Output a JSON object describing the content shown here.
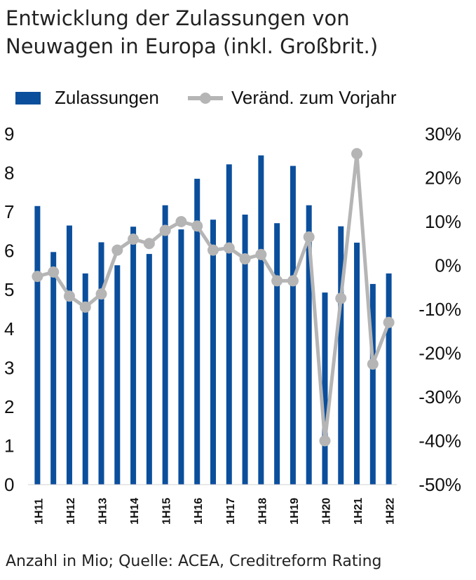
{
  "title_lines": [
    "Entwicklung der Zulassungen von",
    "Neuwagen in Europa (inkl. Großbrit.)"
  ],
  "footer": "Anzahl in Mio; Quelle: ACEA, Creditreform Rating",
  "chart_data": {
    "type": "bar",
    "categories": [
      "1H11",
      "2H11",
      "1H12",
      "2H12",
      "1H13",
      "2H13",
      "1H14",
      "2H14",
      "1H15",
      "2H15",
      "1H16",
      "2H16",
      "1H17",
      "2H17",
      "1H18",
      "2H18",
      "1H19",
      "2H19",
      "1H20",
      "2H20",
      "1H21",
      "2H21",
      "1H22"
    ],
    "tick_labels": [
      "1H11",
      "",
      "1H12",
      "",
      "1H13",
      "",
      "1H14",
      "",
      "1H15",
      "",
      "1H16",
      "",
      "1H17",
      "",
      "1H18",
      "",
      "1H19",
      "",
      "1H20",
      "",
      "1H21",
      "",
      "1H22"
    ],
    "series": [
      {
        "name": "Zulassungen",
        "type": "bar",
        "axis": "left",
        "color": "#0b4f9c",
        "values": [
          7.15,
          5.97,
          6.65,
          5.42,
          6.22,
          5.63,
          6.62,
          5.92,
          7.17,
          6.55,
          7.85,
          6.8,
          8.22,
          6.93,
          8.45,
          6.71,
          8.18,
          7.17,
          4.93,
          6.63,
          6.21,
          5.15,
          5.42
        ]
      },
      {
        "name": "Veränd. zum Vorjahr",
        "type": "line",
        "axis": "right",
        "color": "#b5b5b5",
        "values": [
          -2.5,
          -1.5,
          -7,
          -9.5,
          -6.5,
          3.5,
          6,
          5,
          8,
          10,
          9,
          3.5,
          4,
          1.5,
          2.5,
          -3.5,
          -3.5,
          6.5,
          -40,
          -7.5,
          25.5,
          -22.5,
          -13
        ]
      }
    ],
    "yleft_ticks": [
      "0",
      "1",
      "2",
      "3",
      "4",
      "5",
      "6",
      "7",
      "8",
      "9"
    ],
    "yright_ticks": [
      "-50%",
      "-40%",
      "-30%",
      "-20%",
      "-10%",
      "0%",
      "10%",
      "20%",
      "30%"
    ],
    "ylim_left": [
      0,
      9
    ],
    "ylim_right": [
      -50,
      30
    ],
    "legend_position": "top",
    "grid": false
  }
}
